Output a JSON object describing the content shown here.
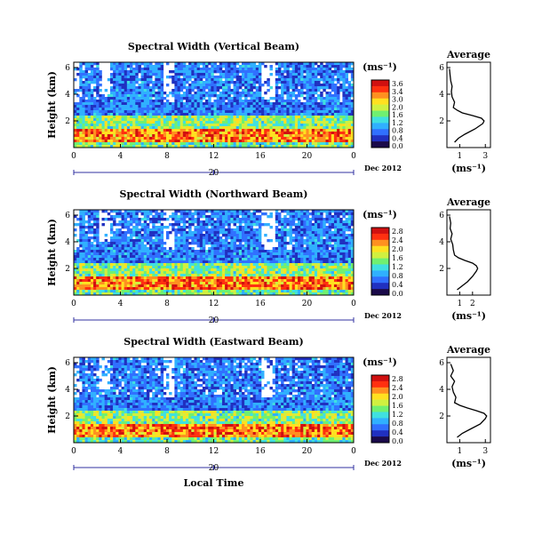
{
  "chart_data": [
    {
      "type": "heatmap",
      "title": "Spectral Width (Vertical Beam)",
      "ylabel": "Height (km)",
      "yticks": [
        "6",
        "4",
        "2"
      ],
      "xticks": [
        "0",
        "4",
        "8",
        "12",
        "16",
        "20",
        "0"
      ],
      "date_tick": "20",
      "date_label": "Dec 2012",
      "colorbar_label": "(ms⁻¹)",
      "colorbar_ticks": [
        "3.6",
        "3.4",
        "3.0",
        "2.0",
        "1.6",
        "1.2",
        "0.8",
        "0.4",
        "0.0"
      ],
      "profile": {
        "title": "Average",
        "xlabel": "(ms⁻¹)",
        "xticks": [
          "1",
          "3"
        ],
        "yticks": [
          "6",
          "4",
          "2"
        ],
        "x": [
          0.2,
          0.25,
          0.3,
          0.4,
          0.35,
          0.4,
          0.6,
          0.5,
          0.8,
          1.2,
          2.0,
          2.7,
          2.9,
          2.8,
          2.2,
          1.4,
          0.9,
          0.6
        ],
        "y": [
          5.9,
          5.4,
          5.0,
          4.6,
          4.2,
          3.8,
          3.4,
          3.0,
          2.8,
          2.6,
          2.4,
          2.2,
          2.0,
          1.8,
          1.4,
          1.0,
          0.7,
          0.4
        ]
      }
    },
    {
      "type": "heatmap",
      "title": "Spectral Width (Northward Beam)",
      "ylabel": "Height (km)",
      "yticks": [
        "6",
        "4",
        "2"
      ],
      "xticks": [
        "0",
        "4",
        "8",
        "12",
        "16",
        "20",
        "0"
      ],
      "date_tick": "20",
      "date_label": "Dec 2012",
      "colorbar_label": "(ms⁻¹)",
      "colorbar_ticks": [
        "2.8",
        "2.4",
        "2.0",
        "1.6",
        "1.2",
        "0.8",
        "0.4",
        "0.0"
      ],
      "profile": {
        "title": "Average",
        "xlabel": "(ms⁻¹)",
        "xticks": [
          "1",
          "2"
        ],
        "yticks": [
          "6",
          "4",
          "2"
        ],
        "x": [
          0.2,
          0.3,
          0.25,
          0.4,
          0.3,
          0.45,
          0.5,
          0.6,
          0.9,
          1.4,
          2.0,
          2.3,
          2.4,
          2.3,
          2.0,
          1.6,
          1.2,
          0.8
        ],
        "y": [
          5.9,
          5.4,
          5.0,
          4.6,
          4.2,
          3.8,
          3.4,
          3.0,
          2.8,
          2.6,
          2.4,
          2.2,
          2.0,
          1.8,
          1.4,
          1.0,
          0.7,
          0.4
        ]
      }
    },
    {
      "type": "heatmap",
      "title": "Spectral Width (Eastward Beam)",
      "ylabel": "Height (km)",
      "yticks": [
        "6",
        "4",
        "2"
      ],
      "xticks": [
        "0",
        "4",
        "8",
        "12",
        "16",
        "20",
        "0"
      ],
      "date_tick": "20",
      "date_label": "Dec 2012",
      "colorbar_label": "(ms⁻¹)",
      "colorbar_ticks": [
        "2.8",
        "2.4",
        "2.0",
        "1.6",
        "1.2",
        "0.8",
        "0.4",
        "0.0"
      ],
      "profile": {
        "title": "Average",
        "xlabel": "(ms⁻¹)",
        "xticks": [
          "1",
          "3"
        ],
        "yticks": [
          "6",
          "4",
          "2"
        ],
        "x": [
          0.3,
          0.5,
          0.3,
          0.6,
          0.4,
          0.5,
          0.7,
          0.6,
          1.0,
          1.6,
          2.3,
          2.9,
          3.1,
          3.0,
          2.6,
          1.8,
          1.2,
          0.8
        ],
        "y": [
          5.9,
          5.4,
          5.0,
          4.6,
          4.2,
          3.8,
          3.4,
          3.0,
          2.8,
          2.6,
          2.4,
          2.2,
          2.0,
          1.8,
          1.4,
          1.0,
          0.7,
          0.4
        ]
      }
    }
  ],
  "shared_xlabel": "Local Time",
  "colors": {
    "colormap": [
      "#1a0a4a",
      "#2030c0",
      "#3070ff",
      "#30b0ff",
      "#40e0e0",
      "#70f070",
      "#d0f040",
      "#ffe020",
      "#ff9020",
      "#ff3010",
      "#d01010"
    ],
    "axis": "#000000",
    "date_axis": "#3030a0"
  }
}
